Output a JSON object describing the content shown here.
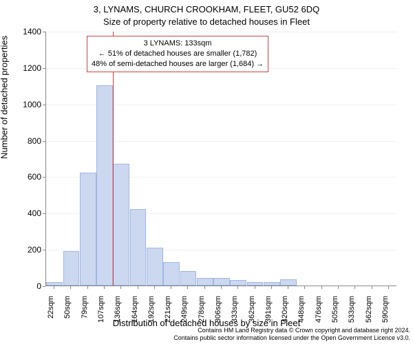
{
  "chart": {
    "type": "histogram",
    "title_line1": "3, LYNAMS, CHURCH CROOKHAM, FLEET, GU52 6DQ",
    "title_line2": "Size of property relative to detached houses in Fleet",
    "ylabel": "Number of detached properties",
    "xlabel": "Distribution of detached houses by size in Fleet",
    "ylim": [
      0,
      1400
    ],
    "ytick_step": 200,
    "yticks": [
      0,
      200,
      400,
      600,
      800,
      1000,
      1200,
      1400
    ],
    "xticks": [
      "22sqm",
      "50sqm",
      "79sqm",
      "107sqm",
      "136sqm",
      "164sqm",
      "192sqm",
      "221sqm",
      "249sqm",
      "278sqm",
      "306sqm",
      "333sqm",
      "362sqm",
      "391sqm",
      "420sqm",
      "448sqm",
      "476sqm",
      "505sqm",
      "533sqm",
      "562sqm",
      "590sqm"
    ],
    "bars": [
      20,
      190,
      620,
      1100,
      670,
      420,
      210,
      130,
      80,
      40,
      40,
      30,
      20,
      20,
      35,
      0,
      0,
      0,
      0,
      0,
      0
    ],
    "bar_fill": "#ccd8f0",
    "bar_stroke": "#9fb6e0",
    "grid_color": "#f0f0f0",
    "background_color": "#ffffff",
    "marker_line_color": "#d04040",
    "marker_bin_index": 4,
    "annot": {
      "line1": "3 LYNAMS: 133sqm",
      "line2": "← 51% of detached houses are smaller (1,782)",
      "line3": "48% of semi-detached houses are larger (1,684) →",
      "border_color": "#d04040"
    }
  },
  "footer": {
    "line1": "Contains HM Land Registry data © Crown copyright and database right 2024.",
    "line2": "Contains public sector information licensed under the Open Government Licence v3.0."
  }
}
